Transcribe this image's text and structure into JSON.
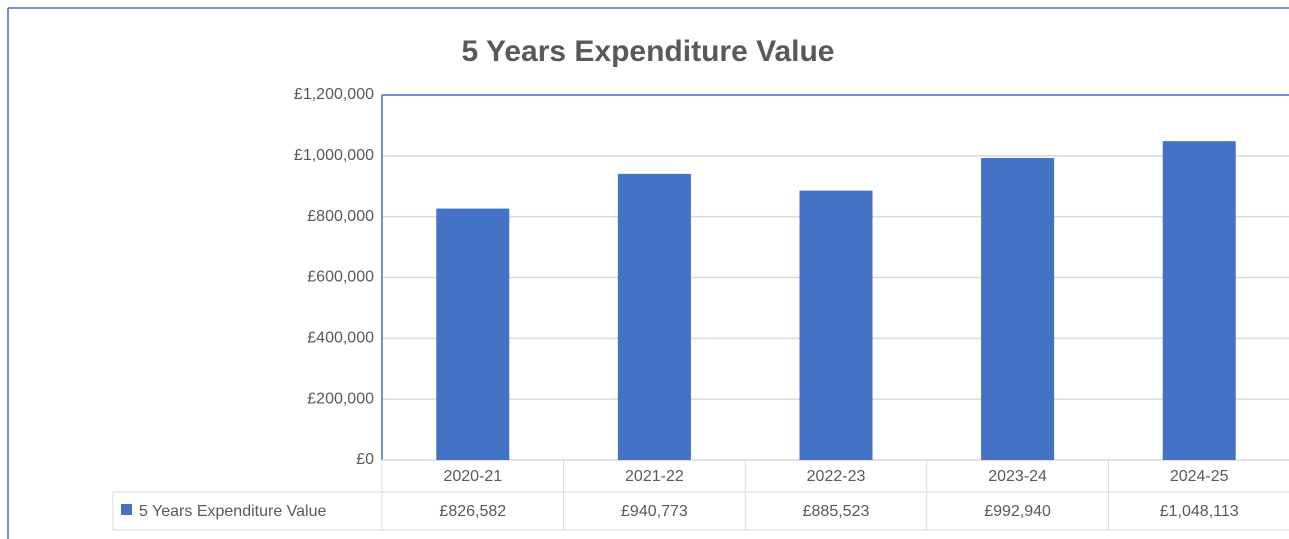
{
  "chart_data": {
    "type": "bar",
    "title": "5 Years Expenditure Value",
    "categories": [
      "2020-21",
      "2021-22",
      "2022-23",
      "2023-24",
      "2024-25"
    ],
    "series": [
      {
        "name": "5 Years Expenditure Value",
        "color": "#4472c4",
        "values": [
          826582,
          940773,
          885523,
          992940,
          1048113
        ],
        "value_labels": [
          "£826,582",
          "£940,773",
          "£885,523",
          "£992,940",
          "£1,048,113"
        ]
      }
    ],
    "ylim": [
      0,
      1200000
    ],
    "yticks": [
      {
        "value": 0,
        "label": "£0"
      },
      {
        "value": 200000,
        "label": "£200,000"
      },
      {
        "value": 400000,
        "label": "£400,000"
      },
      {
        "value": 600000,
        "label": "£600,000"
      },
      {
        "value": 800000,
        "label": "£800,000"
      },
      {
        "value": 1000000,
        "label": "£1,000,000"
      },
      {
        "value": 1200000,
        "label": "£1,200,000"
      }
    ],
    "grid": true
  }
}
